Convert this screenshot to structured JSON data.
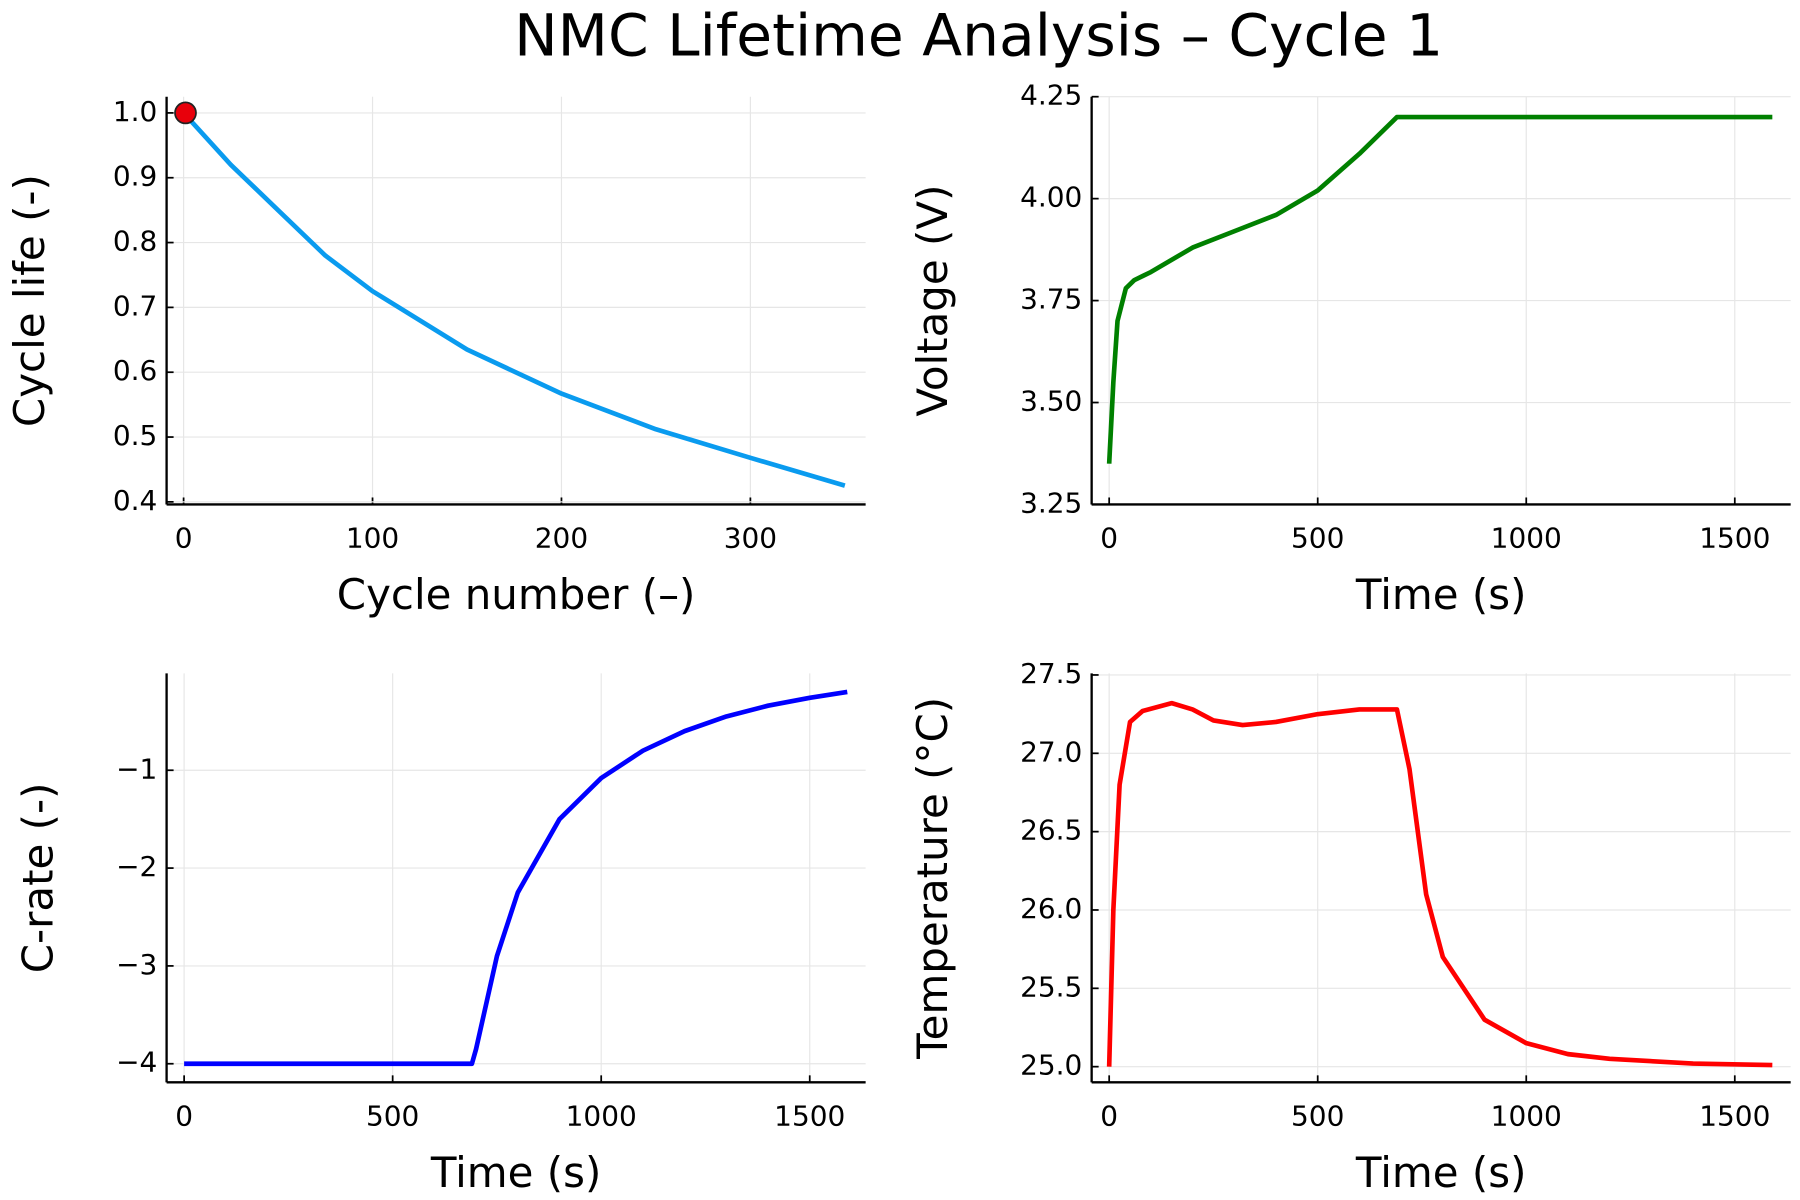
{
  "title": "NMC Lifetime Analysis – Cycle 1",
  "chart_data": [
    {
      "type": "line",
      "xlabel": "Cycle number (–)",
      "ylabel": "Cycle life (-)",
      "x": [
        0,
        25,
        50,
        75,
        100,
        150,
        200,
        250,
        300,
        350
      ],
      "values": [
        1.0,
        0.92,
        0.85,
        0.78,
        0.725,
        0.635,
        0.567,
        0.512,
        0.468,
        0.425
      ],
      "color": "#0a9bef",
      "marker": {
        "x": 1,
        "y": 1.0,
        "color": "#e8000b"
      },
      "xlim": [
        -9,
        361
      ],
      "ylim": [
        0.396,
        1.025
      ],
      "xticks": [
        0,
        100,
        200,
        300
      ],
      "yticks": [
        0.4,
        0.5,
        0.6,
        0.7,
        0.8,
        0.9,
        {
          "value": 1,
          "label": "1.0"
        }
      ],
      "grid": true
    },
    {
      "type": "line",
      "xlabel": "Time (s)",
      "ylabel": "Voltage (V)",
      "x": [
        0,
        10,
        20,
        40,
        60,
        100,
        200,
        300,
        400,
        500,
        600,
        690,
        800,
        1000,
        1590
      ],
      "values": [
        3.35,
        3.55,
        3.7,
        3.78,
        3.8,
        3.82,
        3.88,
        3.92,
        3.96,
        4.02,
        4.11,
        4.2,
        4.2,
        4.2,
        4.2
      ],
      "color": "#008000",
      "xlim": [
        -42,
        1634
      ],
      "ylim": [
        3.25,
        4.25
      ],
      "xticks": [
        0,
        500,
        1000,
        1500
      ],
      "yticks": [
        3.25,
        {
          "value": 3.5,
          "label": "3.50"
        },
        3.75,
        {
          "value": 4,
          "label": "4.00"
        },
        4.25
      ],
      "grid": true
    },
    {
      "type": "line",
      "xlabel": "Time (s)",
      "ylabel": "C-rate (-)",
      "x": [
        0,
        690,
        700,
        750,
        800,
        900,
        1000,
        1100,
        1200,
        1300,
        1400,
        1500,
        1590
      ],
      "values": [
        -4,
        -4,
        -3.85,
        -2.9,
        -2.25,
        -1.5,
        -1.08,
        -0.8,
        -0.6,
        -0.45,
        -0.34,
        -0.26,
        -0.2
      ],
      "color": "#0000ff",
      "xlim": [
        -42,
        1634
      ],
      "ylim": [
        -4.19,
        -0.01
      ],
      "xticks": [
        0,
        500,
        1000,
        1500
      ],
      "yticks": [
        {
          "value": -1,
          "label": "−1"
        },
        {
          "value": -2,
          "label": "−2"
        },
        {
          "value": -3,
          "label": "−3"
        },
        {
          "value": -4,
          "label": "−4"
        }
      ],
      "grid": true
    },
    {
      "type": "line",
      "xlabel": "Time (s)",
      "ylabel": "Temperature (°C)",
      "x": [
        0,
        10,
        25,
        50,
        80,
        150,
        200,
        250,
        320,
        400,
        500,
        600,
        690,
        720,
        760,
        800,
        900,
        1000,
        1100,
        1200,
        1400,
        1590
      ],
      "values": [
        25.0,
        26.0,
        26.8,
        27.2,
        27.27,
        27.32,
        27.28,
        27.21,
        27.18,
        27.2,
        27.25,
        27.28,
        27.28,
        26.9,
        26.1,
        25.7,
        25.3,
        25.15,
        25.08,
        25.05,
        25.02,
        25.01
      ],
      "color": "#ff0000",
      "xlim": [
        -42,
        1634
      ],
      "ylim": [
        24.9,
        27.51
      ],
      "xticks": [
        0,
        500,
        1000,
        1500
      ],
      "yticks": [
        {
          "value": 25,
          "label": "25.0"
        },
        25.5,
        {
          "value": 26,
          "label": "26.0"
        },
        26.5,
        {
          "value": 27,
          "label": "27.0"
        },
        27.5
      ],
      "grid": true
    }
  ]
}
